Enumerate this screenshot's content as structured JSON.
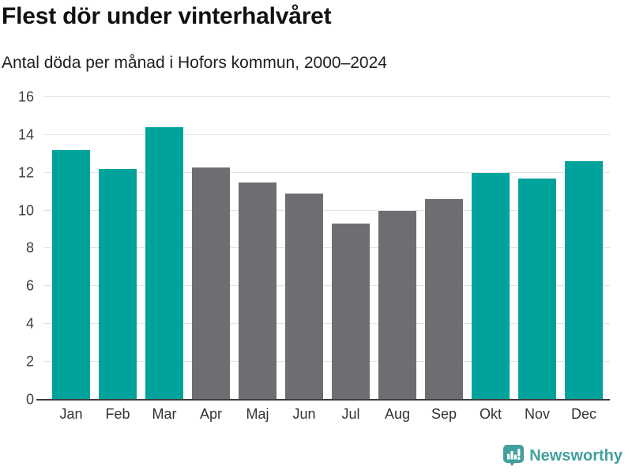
{
  "header": {
    "title": "Flest dör under vinterhalvåret",
    "subtitle": "Antal döda per månad i Hofors kommun, 2000–2024"
  },
  "chart_data": {
    "type": "bar",
    "title": "Flest dör under vinterhalvåret",
    "subtitle": "Antal döda per månad i Hofors kommun, 2000–2024",
    "categories": [
      "Jan",
      "Feb",
      "Mar",
      "Apr",
      "Maj",
      "Jun",
      "Jul",
      "Aug",
      "Sep",
      "Okt",
      "Nov",
      "Dec"
    ],
    "values": [
      13.2,
      12.2,
      14.4,
      12.3,
      11.5,
      10.9,
      9.3,
      10.0,
      10.6,
      12.0,
      11.7,
      12.6
    ],
    "bar_color_keys": [
      "winter",
      "winter",
      "winter",
      "summer",
      "summer",
      "summer",
      "summer",
      "summer",
      "summer",
      "winter",
      "winter",
      "winter"
    ],
    "xlabel": "",
    "ylabel": "",
    "ylim": [
      0,
      16
    ],
    "yticks": [
      0,
      2,
      4,
      6,
      8,
      10,
      12,
      14,
      16
    ],
    "grid": "horizontal gridlines at every ytick, legend off",
    "colors": {
      "winter": "#00a39b",
      "summer": "#6e6e72",
      "gridline": "#e2e2e2",
      "axis": "#3d3d3d"
    }
  },
  "footer": {
    "brand": "Newsworthy",
    "brand_color": "#44a09e"
  }
}
